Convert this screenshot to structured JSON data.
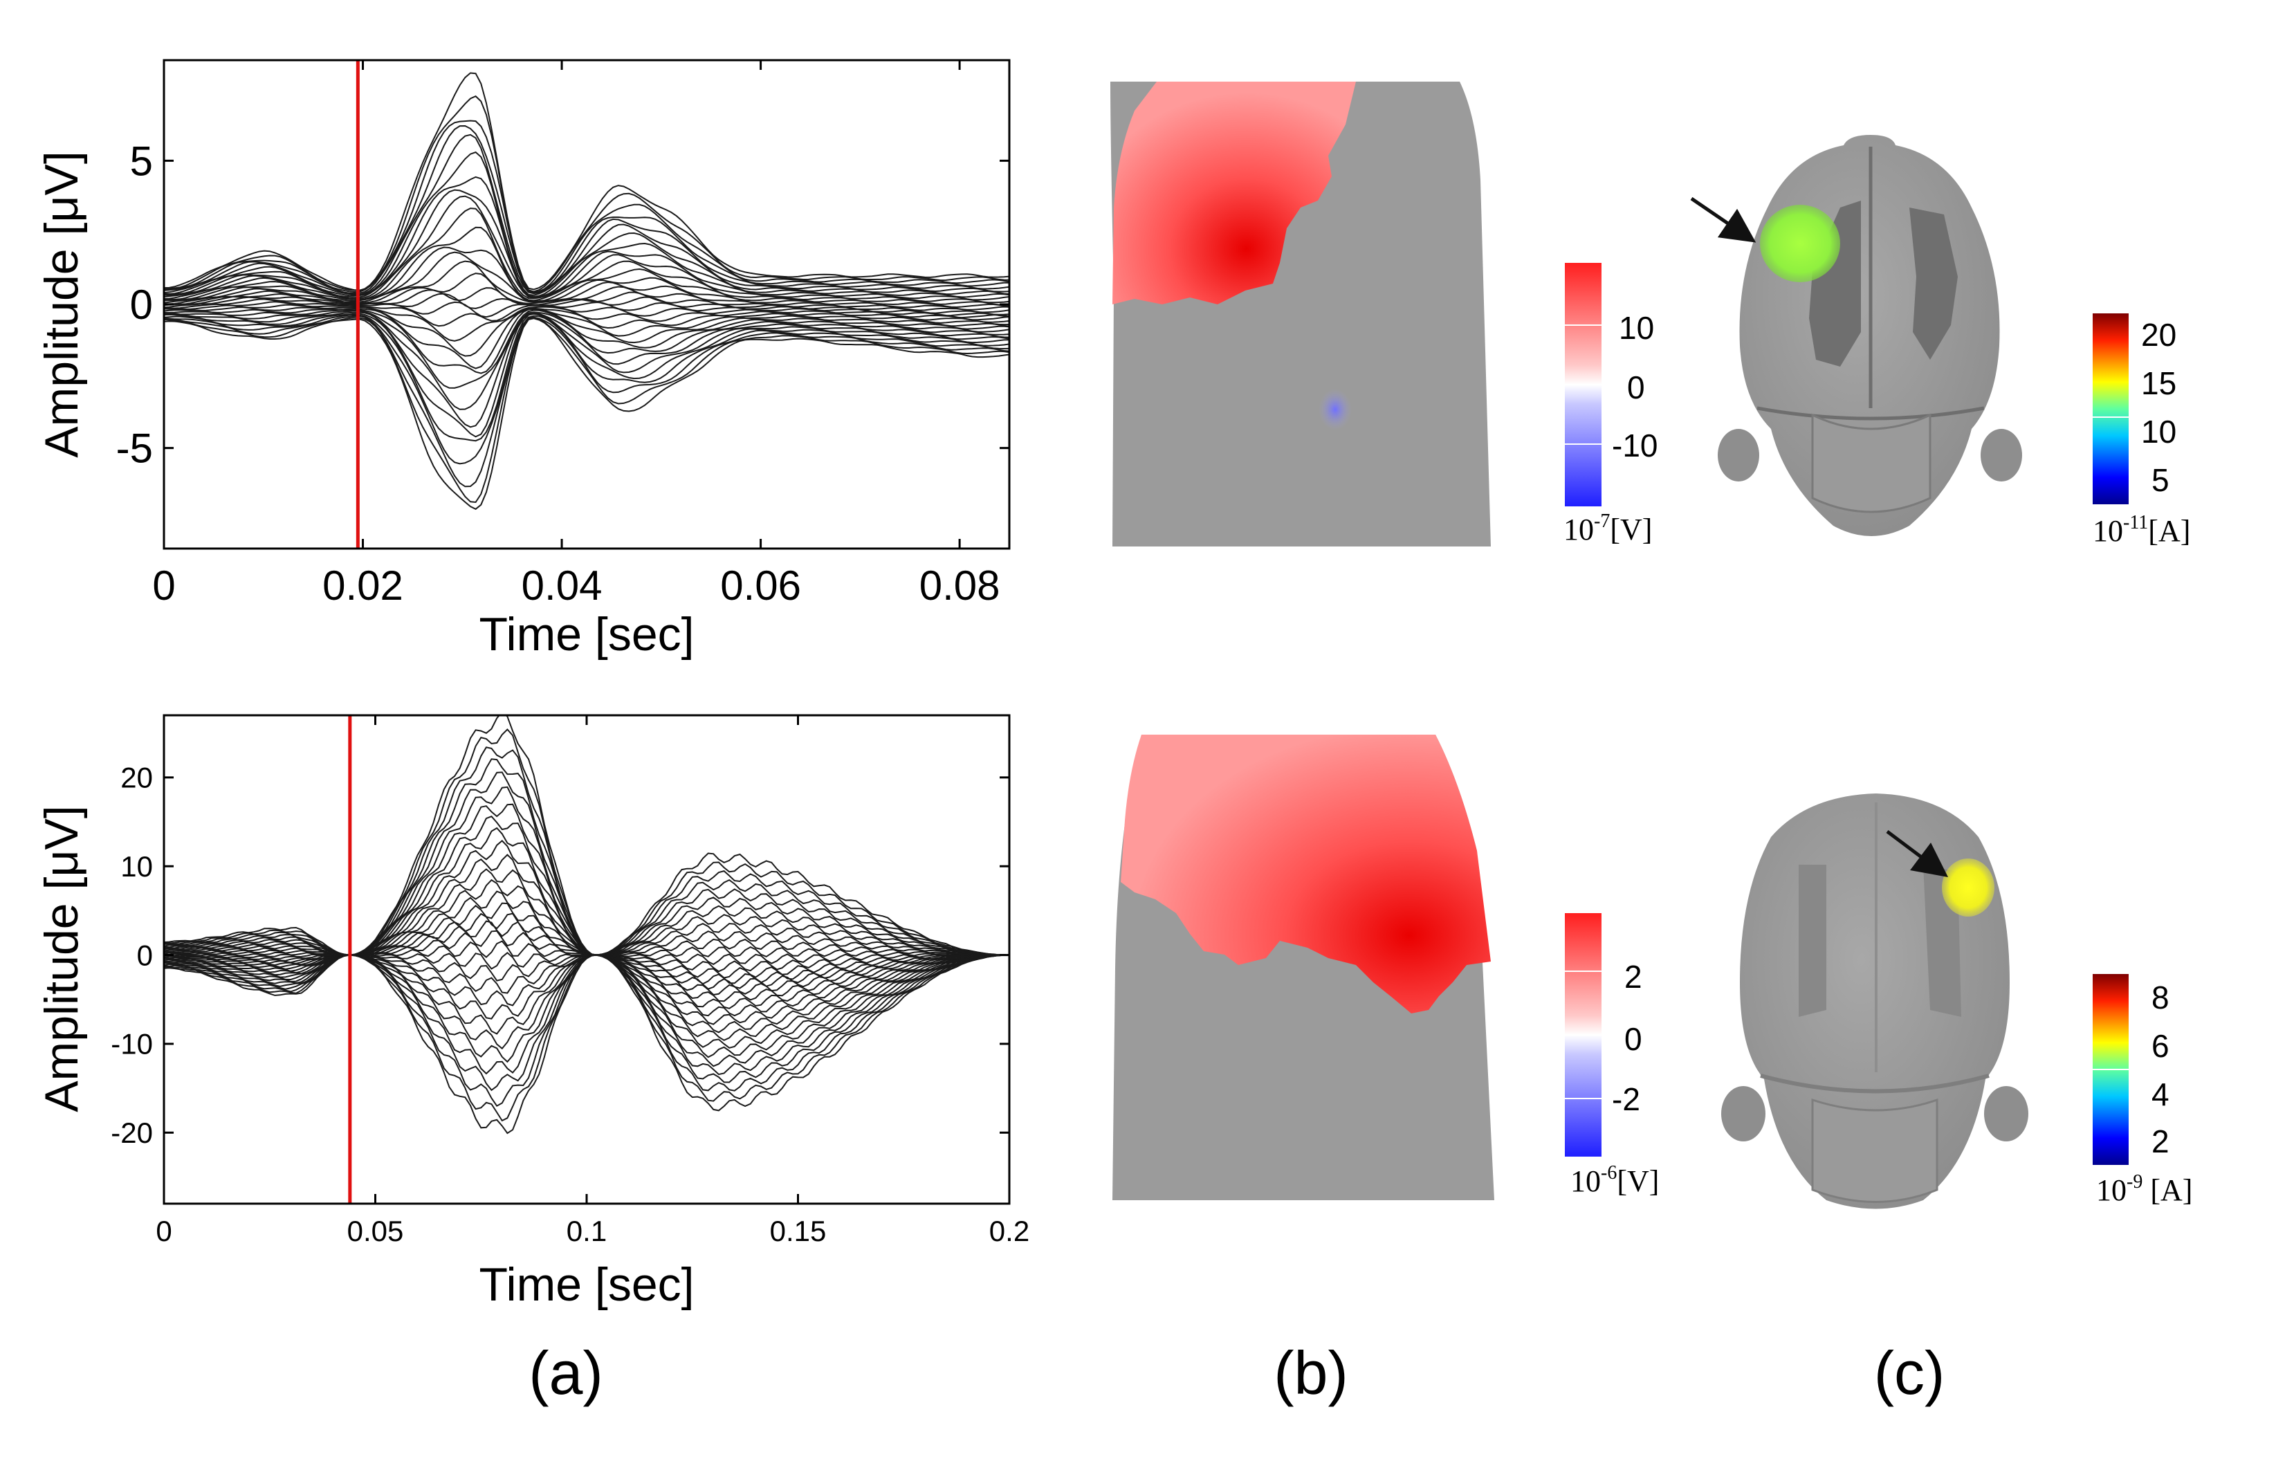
{
  "panel_labels": {
    "a": "(a)",
    "b": "(b)",
    "c": "(c)"
  },
  "colorbars": {
    "b_top": {
      "ticks": [
        "10",
        "0",
        "-10"
      ],
      "unit_base": "10",
      "unit_exp": "-7",
      "unit": "[V]"
    },
    "b_bottom": {
      "ticks": [
        "2",
        "0",
        "-2"
      ],
      "unit_base": "10",
      "unit_exp": "-6",
      "unit": "[V]"
    },
    "c_top": {
      "ticks": [
        "20",
        "15",
        "10",
        "5"
      ],
      "unit_base": "10",
      "unit_exp": "-11",
      "unit": "[A]"
    },
    "c_bottom": {
      "ticks": [
        "8",
        "6",
        "4",
        "2"
      ],
      "unit_base": "10",
      "unit_exp": "-9",
      "unit": " [A]"
    }
  },
  "colors": {
    "trace": "#1a1a1a",
    "marker": "#e01010",
    "head": "#9a9a9a",
    "positive": "#ff2a2a",
    "negative": "#3b3bff"
  },
  "chart_data": [
    {
      "type": "line",
      "title": "",
      "xlabel": "Time [sec]",
      "ylabel": "Amplitude [μV]",
      "xlim": [
        0,
        0.085
      ],
      "ylim": [
        -8.5,
        8.5
      ],
      "xticks": [
        "0",
        "0.02",
        "0.04",
        "0.06",
        "0.08"
      ],
      "yticks": [
        "5",
        "0",
        "-5"
      ],
      "marker_time": 0.0195,
      "grid": false,
      "legend": "none",
      "n_traces": 32,
      "envelope": {
        "x": [
          0,
          0.01,
          0.0195,
          0.031,
          0.037,
          0.046,
          0.06,
          0.085
        ],
        "max": [
          0.6,
          1.8,
          0.5,
          7.8,
          0.5,
          4.0,
          1.0,
          1.0
        ],
        "min": [
          -0.6,
          -1.2,
          -0.5,
          -7.2,
          -0.5,
          -3.6,
          -1.2,
          -1.8
        ]
      }
    },
    {
      "type": "line",
      "title": "",
      "xlabel": "Time [sec]",
      "ylabel": "Amplitude [μV]",
      "xlim": [
        0,
        0.2
      ],
      "ylim": [
        -28,
        27
      ],
      "xticks": [
        "0",
        "0.05",
        "0.1",
        "0.15",
        "0.2"
      ],
      "yticks": [
        "20",
        "10",
        "0",
        "-10",
        "-20"
      ],
      "marker_time": 0.044,
      "grid": false,
      "legend": "none",
      "n_traces": 32,
      "envelope": {
        "x": [
          0,
          0.03,
          0.044,
          0.08,
          0.102,
          0.13,
          0.2
        ],
        "max": [
          1.5,
          3.0,
          0,
          26.5,
          0,
          11.0,
          0
        ],
        "min": [
          -1.5,
          -4.5,
          0,
          -19.5,
          0,
          -17.0,
          0
        ]
      }
    }
  ]
}
